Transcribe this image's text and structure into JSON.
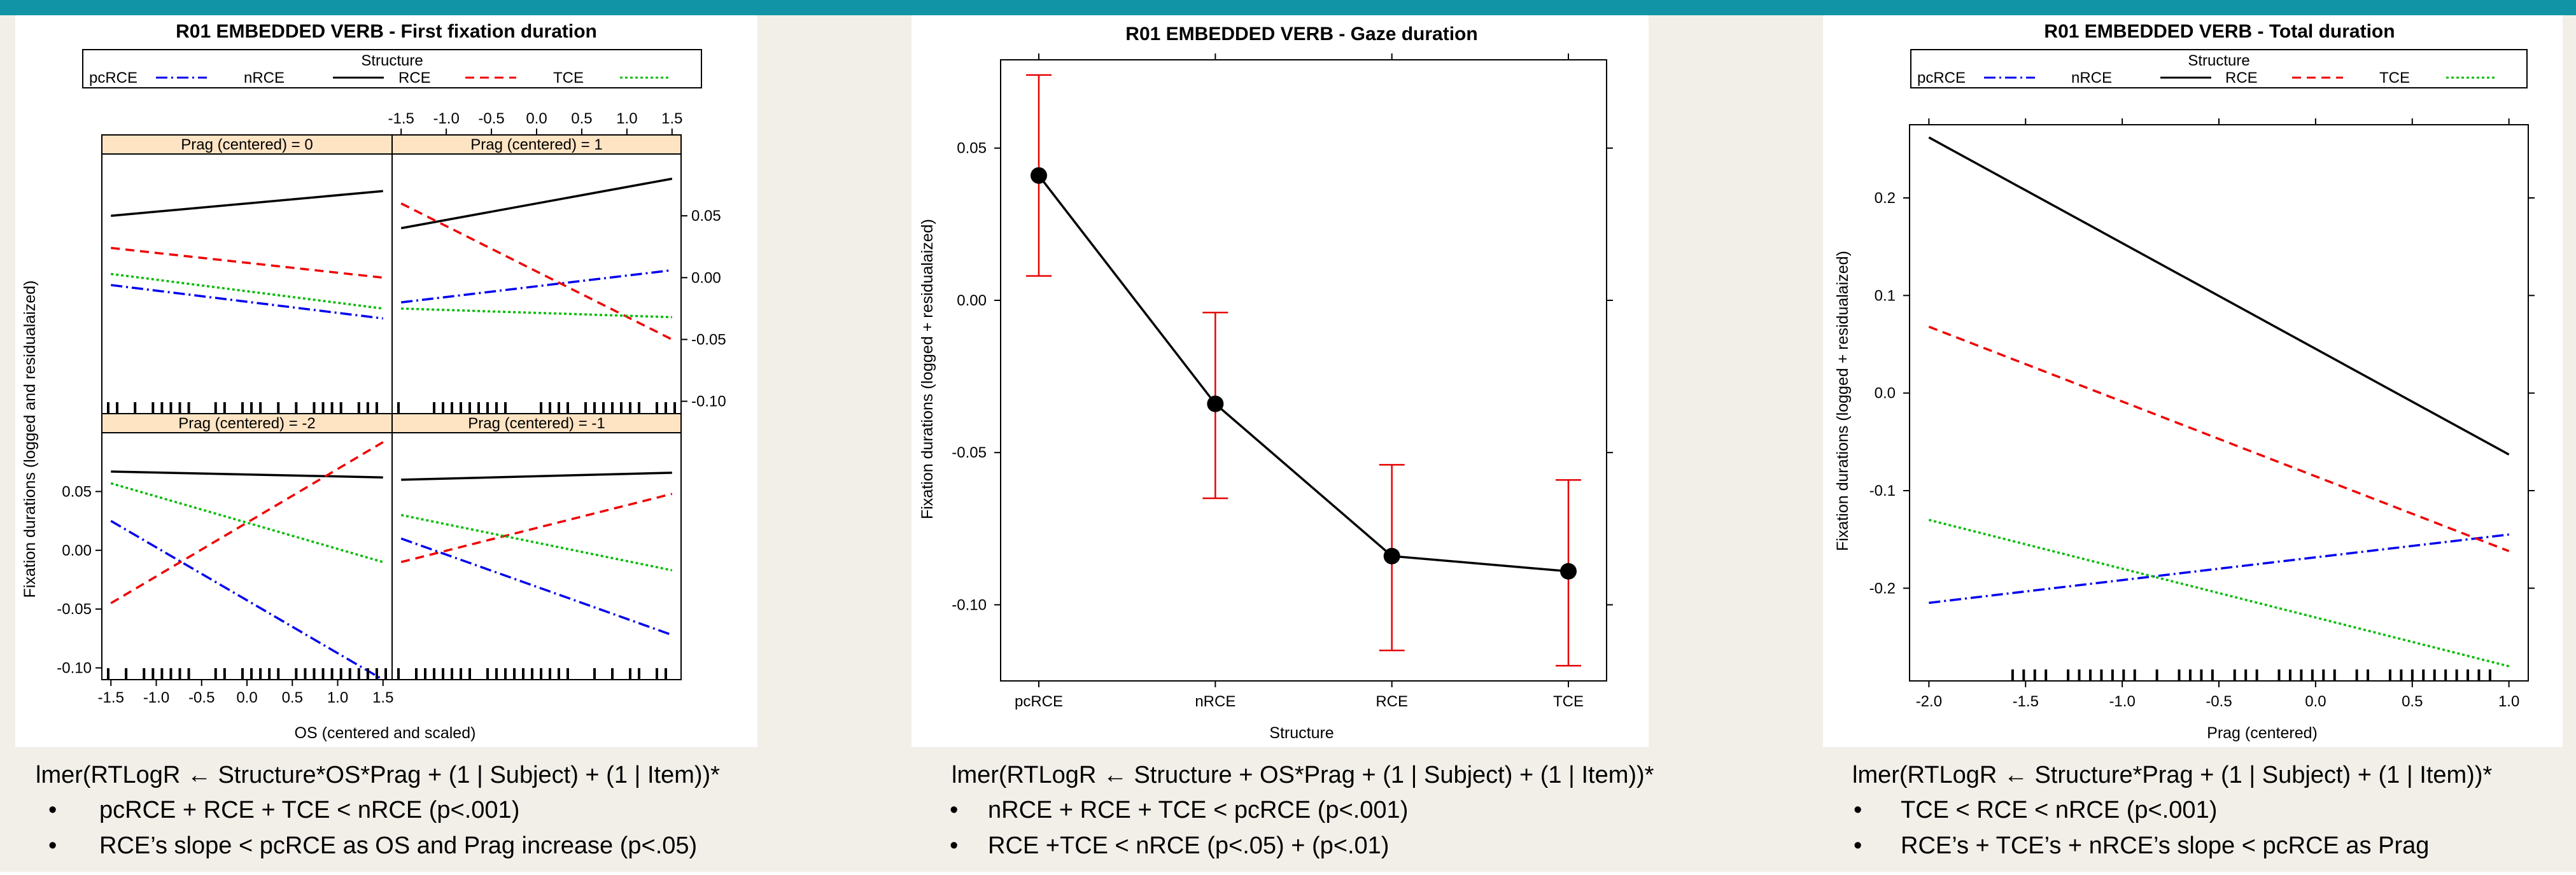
{
  "theme": {
    "banner": "#1195a6",
    "page_bg": "#f2efe8",
    "strip_bg": "#ffe4c4",
    "strip_border": "#d07820",
    "error_bar": "#e60000"
  },
  "banner": {
    "text": ""
  },
  "panels": [
    {
      "title": "R01 EMBEDDED VERB - First fixation duration",
      "formula": "lmer(RTLogR ← Structure*OS*Prag + (1 | Subject) + (1 | Item))*",
      "bullets": [
        "pcRCE + RCE + TCE < nRCE (p<.001)",
        "RCE’s slope < pcRCE as OS and Prag increase (p<.05)"
      ]
    },
    {
      "title": "R01 EMBEDDED VERB - Gaze duration",
      "formula": "lmer(RTLogR ← Structure + OS*Prag + (1 | Subject) + (1 | Item))*",
      "bullets": [
        "nRCE + RCE + TCE < pcRCE (p<.001)",
        "RCE +TCE  < nRCE (p<.05) + (p<.01)"
      ]
    },
    {
      "title": "R01 EMBEDDED VERB - Total duration",
      "formula": "lmer(RTLogR ← Structure*Prag + (1 | Subject) + (1 | Item))*",
      "bullets": [
        "TCE < RCE < nRCE (p<.001)",
        "RCE’s + TCE’s + nRCE’s slope  < pcRCE as Prag"
      ]
    }
  ],
  "chart_data": [
    {
      "type": "line",
      "title": "R01 EMBEDDED VERB - First fixation duration",
      "xlabel": "OS (centered and scaled)",
      "ylabel": "Fixation durations (logged and residualaized)",
      "legend": {
        "title": "Structure",
        "position": "top"
      },
      "xlim": [
        -1.6,
        1.6
      ],
      "ylim": [
        -0.11,
        0.1
      ],
      "xticks": [
        -1.5,
        -1.0,
        -0.5,
        0.0,
        0.5,
        1.0,
        1.5
      ],
      "xtick_labels": [
        "-1.5",
        "-1.0",
        "-0.5",
        "0.0",
        "0.5",
        "1.0",
        "1.5"
      ],
      "yticks": [
        -0.1,
        -0.05,
        0.0,
        0.05
      ],
      "ytick_labels": [
        "-0.10",
        "-0.05",
        "0.00",
        "0.05"
      ],
      "series": [
        {
          "name": "pcRCE",
          "color": "#0000ee",
          "dash": "18,6,3,6"
        },
        {
          "name": "nRCE",
          "color": "#000000",
          "dash": ""
        },
        {
          "name": "RCE",
          "color": "#ee0000",
          "dash": "14,9"
        },
        {
          "name": "TCE",
          "color": "#00bb00",
          "dash": "4,4"
        }
      ],
      "facets": [
        {
          "strip": "Prag (centered) = 0",
          "row": 0,
          "col": 0,
          "lines": {
            "pcRCE": [
              -0.006,
              -0.033
            ],
            "nRCE": [
              0.05,
              0.07
            ],
            "RCE": [
              0.024,
              0.0
            ],
            "TCE": [
              0.003,
              -0.025
            ]
          }
        },
        {
          "strip": "Prag (centered) = 1",
          "row": 0,
          "col": 1,
          "lines": {
            "pcRCE": [
              -0.02,
              0.006
            ],
            "nRCE": [
              0.04,
              0.08
            ],
            "RCE": [
              0.06,
              -0.05
            ],
            "TCE": [
              -0.025,
              -0.032
            ]
          }
        },
        {
          "strip": "Prag (centered) = -2",
          "row": 1,
          "col": 0,
          "lines": {
            "pcRCE": [
              0.025,
              -0.11
            ],
            "nRCE": [
              0.067,
              0.062
            ],
            "RCE": [
              -0.045,
              0.092
            ],
            "TCE": [
              0.057,
              -0.01
            ]
          }
        },
        {
          "strip": "Prag (centered) = -1",
          "row": 1,
          "col": 1,
          "lines": {
            "pcRCE": [
              0.01,
              -0.072
            ],
            "nRCE": [
              0.06,
              0.066
            ],
            "RCE": [
              -0.01,
              0.048
            ],
            "TCE": [
              0.03,
              -0.017
            ]
          }
        }
      ]
    },
    {
      "type": "line",
      "title": "R01 EMBEDDED VERB - Gaze duration",
      "xlabel": "Structure",
      "ylabel": "Fixation durations (logged + residualaized)",
      "categories": [
        "pcRCE",
        "nRCE",
        "RCE",
        "TCE"
      ],
      "ylim": [
        -0.125,
        0.079
      ],
      "yticks": [
        -0.1,
        -0.05,
        0.0,
        0.05
      ],
      "ytick_labels": [
        "-0.10",
        "-0.05",
        "0.00",
        "0.05"
      ],
      "values": [
        0.041,
        -0.034,
        -0.084,
        -0.089
      ],
      "ci_lower": [
        0.008,
        -0.065,
        -0.115,
        -0.12
      ],
      "ci_upper": [
        0.074,
        -0.004,
        -0.054,
        -0.059
      ]
    },
    {
      "type": "line",
      "title": "R01 EMBEDDED VERB - Total duration",
      "xlabel": "Prag (centered)",
      "ylabel": "Fixation durations (logged + residualaized)",
      "legend": {
        "title": "Structure",
        "position": "top"
      },
      "xlim": [
        -2.1,
        1.1
      ],
      "ylim": [
        -0.295,
        0.275
      ],
      "xticks": [
        -2.0,
        -1.5,
        -1.0,
        -0.5,
        0.0,
        0.5,
        1.0
      ],
      "xtick_labels": [
        "-2.0",
        "-1.5",
        "-1.0",
        "-0.5",
        "0.0",
        "0.5",
        "1.0"
      ],
      "yticks": [
        -0.2,
        -0.1,
        0.0,
        0.1,
        0.2
      ],
      "ytick_labels": [
        "-0.2",
        "-0.1",
        "0.0",
        "0.1",
        "0.2"
      ],
      "series": [
        {
          "name": "pcRCE",
          "color": "#0000ee",
          "dash": "18,6,3,6",
          "endpoints": [
            -0.215,
            -0.145
          ]
        },
        {
          "name": "nRCE",
          "color": "#000000",
          "dash": "",
          "endpoints": [
            0.262,
            -0.063
          ]
        },
        {
          "name": "RCE",
          "color": "#ee0000",
          "dash": "14,9",
          "endpoints": [
            0.068,
            -0.162
          ]
        },
        {
          "name": "TCE",
          "color": "#00bb00",
          "dash": "4,4",
          "endpoints": [
            -0.13,
            -0.28
          ]
        }
      ]
    }
  ]
}
